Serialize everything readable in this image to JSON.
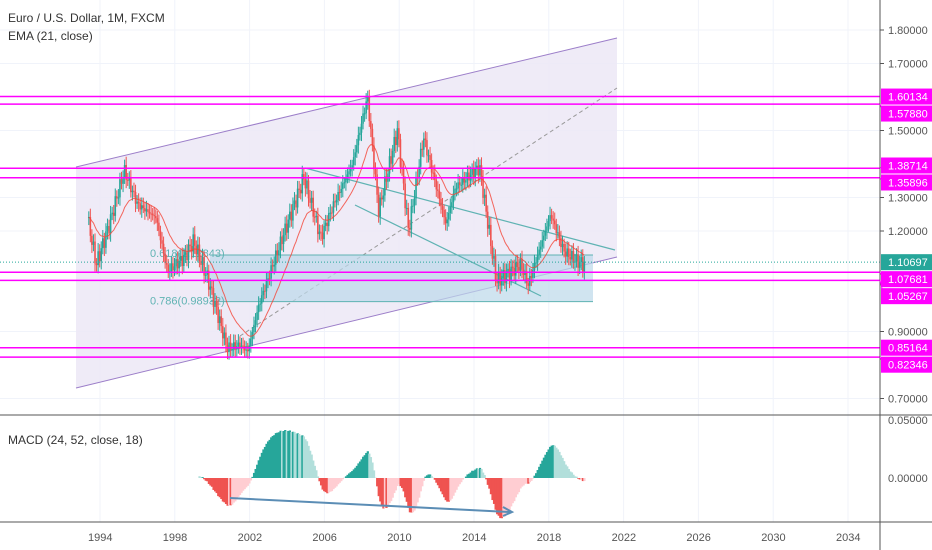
{
  "header": {
    "title": "Euro / U.S. Dollar, 1M, FXCM",
    "indicator": "EMA (21, close)",
    "macd_label": "MACD (24, 52, close, 18)"
  },
  "colors": {
    "up": "#26a69a",
    "down": "#ef5350",
    "level": "#ff00ff",
    "last": "#26a69a",
    "channel": "#9c7ec9",
    "channel_fill": "#ece8f6",
    "fib": "#5fb3b3",
    "ema": "#f44336",
    "macd_up": "#26a69a",
    "macd_up_light": "#b2dfdb",
    "macd_down": "#ef5350",
    "macd_down_light": "#ffcdd2",
    "arrow": "#5b8db5"
  },
  "chart_data": {
    "type": "candlestick",
    "title": "Euro / U.S. Dollar, 1M, FXCM",
    "ylim": [
      0.65,
      1.85
    ],
    "y_ticks": [
      "1.80000",
      "1.70000",
      "1.50000",
      "1.30000",
      "1.20000",
      "0.90000",
      "0.70000"
    ],
    "y_tick_values": [
      1.8,
      1.7,
      1.5,
      1.3,
      1.2,
      0.9,
      0.7
    ],
    "x_ticks": [
      "1994",
      "1998",
      "2002",
      "2006",
      "2010",
      "2014",
      "2018",
      "2022",
      "2026",
      "2030",
      "2034"
    ],
    "price_path": [
      [
        1993.4,
        1.22
      ],
      [
        1993.8,
        1.1
      ],
      [
        1994.5,
        1.22
      ],
      [
        1995.3,
        1.38
      ],
      [
        1996,
        1.28
      ],
      [
        1997,
        1.24
      ],
      [
        1997.6,
        1.08
      ],
      [
        1998.5,
        1.12
      ],
      [
        1999,
        1.17
      ],
      [
        1999.8,
        1.05
      ],
      [
        2000.8,
        0.85
      ],
      [
        2001.5,
        0.86
      ],
      [
        2001.9,
        0.84
      ],
      [
        2002.5,
        0.98
      ],
      [
        2003.5,
        1.14
      ],
      [
        2004.9,
        1.36
      ],
      [
        2005.8,
        1.18
      ],
      [
        2006.5,
        1.28
      ],
      [
        2007.5,
        1.4
      ],
      [
        2008.3,
        1.6
      ],
      [
        2008.9,
        1.26
      ],
      [
        2009.9,
        1.5
      ],
      [
        2010.5,
        1.2
      ],
      [
        2011.3,
        1.48
      ],
      [
        2012.5,
        1.22
      ],
      [
        2013,
        1.33
      ],
      [
        2014.3,
        1.39
      ],
      [
        2015.2,
        1.05
      ],
      [
        2016.5,
        1.1
      ],
      [
        2016.9,
        1.04
      ],
      [
        2018.1,
        1.25
      ],
      [
        2018.8,
        1.14
      ],
      [
        2019.5,
        1.11
      ],
      [
        2019.9,
        1.1
      ]
    ],
    "levels": [
      {
        "label": "1.60134",
        "value": 1.60134
      },
      {
        "label": "1.57880",
        "value": 1.5788
      },
      {
        "label": "1.38714",
        "value": 1.38714
      },
      {
        "label": "1.35896",
        "value": 1.35896
      },
      {
        "label": "1.07681",
        "value": 1.07681
      },
      {
        "label": "1.05267",
        "value": 1.05267
      },
      {
        "label": "0.85164",
        "value": 0.85164
      },
      {
        "label": "0.82346",
        "value": 0.82346
      }
    ],
    "last_price": {
      "label": "1.10697",
      "value": 1.10697
    },
    "fib": [
      {
        "label": "0.618(1.12843)",
        "value": 1.12843
      },
      {
        "label": "0.786(0.98932)",
        "value": 0.98932
      }
    ],
    "macd": {
      "y_ticks": [
        "0.05000",
        "0.00000"
      ],
      "y_tick_values": [
        0.05,
        0
      ]
    }
  }
}
